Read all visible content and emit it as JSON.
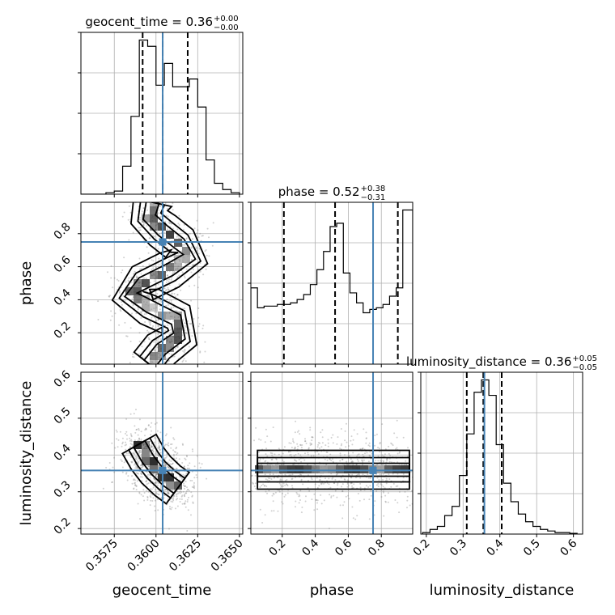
{
  "chart_data": {
    "type": "corner",
    "parameters": [
      {
        "name": "geocent_time",
        "axis_label": "geocent_time",
        "title": "geocent_time = 0.36^{+0.00}_{-0.00}",
        "title_main": "geocent_time = 0.36",
        "title_sup": "+0.00",
        "title_sub": "−0.00",
        "range": [
          0.3555,
          0.3652
        ],
        "ticks": [
          0.3575,
          0.36,
          0.3625,
          0.365
        ],
        "tick_labels": [
          "0.3575",
          "0.3600",
          "0.3625",
          "0.3650"
        ],
        "truth": 0.3604,
        "quantiles": [
          0.3592,
          0.3604,
          0.3619
        ],
        "histogram": {
          "edges": [
            0.3555,
            0.356,
            0.3565,
            0.357,
            0.3575,
            0.358,
            0.3585,
            0.359,
            0.3595,
            0.36,
            0.3605,
            0.361,
            0.3615,
            0.362,
            0.3625,
            0.363,
            0.3635,
            0.364,
            0.3645,
            0.365
          ],
          "counts": [
            0.0,
            0.0,
            0.0,
            0.01,
            0.02,
            0.18,
            0.5,
            0.99,
            0.95,
            0.7,
            0.84,
            0.69,
            0.69,
            0.74,
            0.56,
            0.22,
            0.07,
            0.03,
            0.01
          ]
        }
      },
      {
        "name": "phase",
        "axis_label": "phase",
        "title": "phase = 0.52^{+0.38}_{-0.31}",
        "title_main": "phase = 0.52",
        "title_sup": "+0.38",
        "title_sub": "−0.31",
        "range": [
          0.01,
          0.99
        ],
        "ticks": [
          0.2,
          0.4,
          0.6,
          0.8
        ],
        "tick_labels": [
          "0.2",
          "0.4",
          "0.6",
          "0.8"
        ],
        "truth": 0.75,
        "quantiles": [
          0.21,
          0.52,
          0.9
        ],
        "histogram": {
          "edges": [
            0.01,
            0.05,
            0.09,
            0.13,
            0.17,
            0.21,
            0.25,
            0.29,
            0.33,
            0.37,
            0.41,
            0.45,
            0.49,
            0.53,
            0.57,
            0.61,
            0.65,
            0.69,
            0.73,
            0.77,
            0.81,
            0.85,
            0.89,
            0.93,
            0.99
          ],
          "counts": [
            0.46,
            0.34,
            0.35,
            0.35,
            0.36,
            0.36,
            0.37,
            0.39,
            0.42,
            0.48,
            0.57,
            0.68,
            0.83,
            0.85,
            0.55,
            0.43,
            0.37,
            0.31,
            0.33,
            0.34,
            0.36,
            0.41,
            0.46,
            0.93
          ]
        }
      },
      {
        "name": "luminosity_distance",
        "axis_label": "luminosity_distance",
        "title": "luminosity_distance = 0.36^{+0.05}_{-0.05}",
        "title_main": "luminosity_distance = 0.36",
        "title_sup": "+0.05",
        "title_sub": "−0.05",
        "range": [
          0.185,
          0.625
        ],
        "ticks": [
          0.2,
          0.3,
          0.4,
          0.5,
          0.6
        ],
        "tick_labels": [
          "0.2",
          "0.3",
          "0.4",
          "0.5",
          "0.6"
        ],
        "truth": 0.358,
        "quantiles": [
          0.31,
          0.355,
          0.405
        ],
        "histogram": {
          "edges": [
            0.19,
            0.21,
            0.23,
            0.25,
            0.27,
            0.29,
            0.31,
            0.33,
            0.35,
            0.37,
            0.39,
            0.41,
            0.43,
            0.45,
            0.47,
            0.49,
            0.51,
            0.53,
            0.55,
            0.57,
            0.59,
            0.61
          ],
          "counts": [
            0.01,
            0.03,
            0.05,
            0.12,
            0.18,
            0.38,
            0.65,
            0.92,
            1.0,
            0.9,
            0.58,
            0.33,
            0.21,
            0.13,
            0.08,
            0.05,
            0.03,
            0.02,
            0.01,
            0.01,
            0.005
          ]
        }
      }
    ],
    "pairs": [
      {
        "x": "geocent_time",
        "y": "phase",
        "description": "S-shaped posterior: density winds between phase 0.95 and 0.05 with geocent_time",
        "mode_track": [
          [
            0.3598,
            0.99
          ],
          [
            0.3596,
            0.9
          ],
          [
            0.3604,
            0.82
          ],
          [
            0.3614,
            0.74
          ],
          [
            0.362,
            0.66
          ],
          [
            0.3608,
            0.58
          ],
          [
            0.3592,
            0.5
          ],
          [
            0.3585,
            0.43
          ],
          [
            0.3596,
            0.36
          ],
          [
            0.3612,
            0.28
          ],
          [
            0.3614,
            0.18
          ],
          [
            0.3603,
            0.1
          ],
          [
            0.3596,
            0.01
          ]
        ]
      },
      {
        "x": "geocent_time",
        "y": "luminosity_distance",
        "description": "anti-correlated blob centred near (0.3600, 0.36)",
        "mode_track": [
          [
            0.359,
            0.43
          ],
          [
            0.3595,
            0.39
          ],
          [
            0.36,
            0.36
          ],
          [
            0.3607,
            0.33
          ],
          [
            0.3613,
            0.31
          ]
        ]
      },
      {
        "x": "phase",
        "y": "luminosity_distance",
        "description": "horizontal band at distance ~0.36 with peaks near phase 0.52 and 0.97",
        "mode_track": [
          [
            0.05,
            0.36
          ],
          [
            0.25,
            0.36
          ],
          [
            0.52,
            0.36
          ],
          [
            0.75,
            0.36
          ],
          [
            0.97,
            0.36
          ]
        ]
      }
    ],
    "grid": true,
    "truth_color": "#4682b4"
  }
}
